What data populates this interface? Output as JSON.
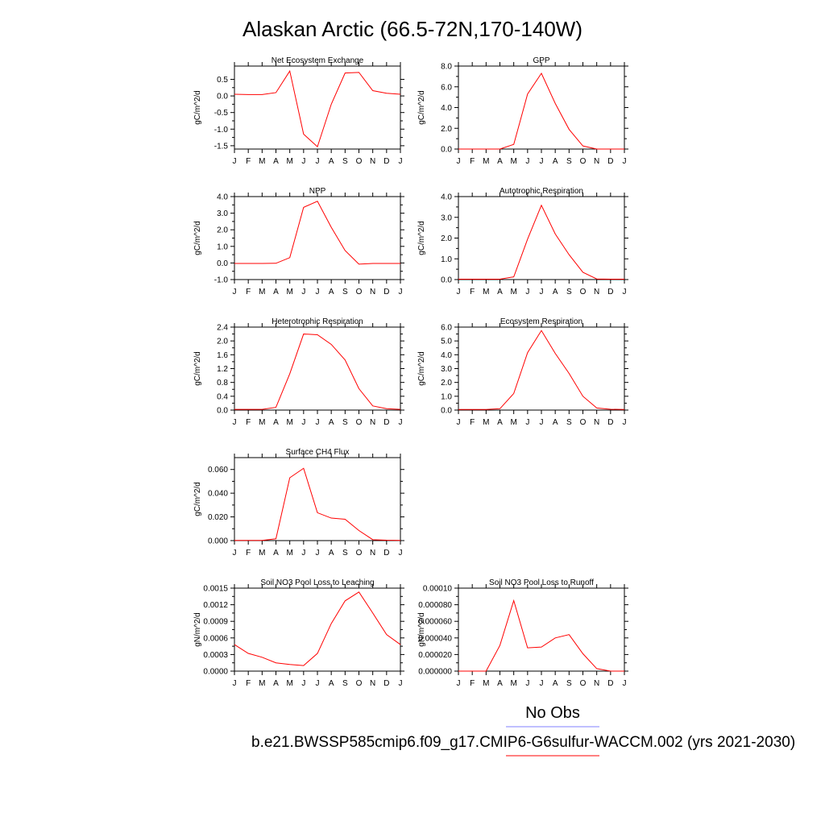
{
  "figure": {
    "title": "Alaskan Arctic (66.5-72N,170-140W)",
    "legend": {
      "obs_label": "No Obs",
      "obs_color": "#8080ff",
      "model_label": "b.e21.BWSSP585cmip6.f09_g17.CMIP6-G6sulfur-WACCM.002 (yrs 2021-2030)",
      "model_color": "#ff0000"
    }
  },
  "chart_data": [
    {
      "type": "line",
      "title": "Net Ecosystem Exchange",
      "ylabel": "gC/m^2/d",
      "x": [
        "J",
        "F",
        "M",
        "A",
        "M",
        "J",
        "J",
        "A",
        "S",
        "O",
        "N",
        "D",
        "J"
      ],
      "ylim": [
        -1.6,
        0.9
      ],
      "yticks": [
        -1.5,
        -1.0,
        -0.5,
        0.0,
        0.5
      ],
      "ytick_labels": [
        "-1.5",
        "-1.0",
        "-0.5",
        "0.0",
        "0.5"
      ],
      "series": [
        {
          "color": "#ff0000",
          "values": [
            0.05,
            0.04,
            0.04,
            0.1,
            0.75,
            -1.15,
            -1.53,
            -0.25,
            0.69,
            0.71,
            0.16,
            0.08,
            0.05
          ]
        }
      ]
    },
    {
      "type": "line",
      "title": "GPP",
      "ylabel": "gC/m^2/d",
      "x": [
        "J",
        "F",
        "M",
        "A",
        "M",
        "J",
        "J",
        "A",
        "S",
        "O",
        "N",
        "D",
        "J"
      ],
      "ylim": [
        0,
        8
      ],
      "yticks": [
        0,
        2,
        4,
        6,
        8
      ],
      "ytick_labels": [
        "0.0",
        "2.0",
        "4.0",
        "6.0",
        "8.0"
      ],
      "series": [
        {
          "color": "#ff0000",
          "values": [
            0,
            0,
            0,
            0,
            0.45,
            5.3,
            7.3,
            4.4,
            1.9,
            0.3,
            0,
            0,
            0
          ]
        }
      ]
    },
    {
      "type": "line",
      "title": "NPP",
      "ylabel": "gC/m^2/d",
      "x": [
        "J",
        "F",
        "M",
        "A",
        "M",
        "J",
        "J",
        "A",
        "S",
        "O",
        "N",
        "D",
        "J"
      ],
      "ylim": [
        -1,
        4
      ],
      "yticks": [
        -1,
        0,
        1,
        2,
        3,
        4
      ],
      "ytick_labels": [
        "-1.0",
        "0.0",
        "1.0",
        "2.0",
        "3.0",
        "4.0"
      ],
      "series": [
        {
          "color": "#ff0000",
          "values": [
            -0.03,
            -0.03,
            -0.03,
            -0.02,
            0.32,
            3.35,
            3.72,
            2.15,
            0.75,
            -0.07,
            -0.03,
            -0.03,
            -0.03
          ]
        }
      ]
    },
    {
      "type": "line",
      "title": "Autotrophic Respiration",
      "ylabel": "gC/m^2/d",
      "x": [
        "J",
        "F",
        "M",
        "A",
        "M",
        "J",
        "J",
        "A",
        "S",
        "O",
        "N",
        "D",
        "J"
      ],
      "ylim": [
        0,
        4
      ],
      "yticks": [
        0,
        1,
        2,
        3,
        4
      ],
      "ytick_labels": [
        "0.0",
        "1.0",
        "2.0",
        "3.0",
        "4.0"
      ],
      "series": [
        {
          "color": "#ff0000",
          "values": [
            0.02,
            0.02,
            0.02,
            0.02,
            0.13,
            1.95,
            3.58,
            2.2,
            1.2,
            0.35,
            0.03,
            0.02,
            0.02
          ]
        }
      ]
    },
    {
      "type": "line",
      "title": "Heterotrophic Respiration",
      "ylabel": "gC/m^2/d",
      "x": [
        "J",
        "F",
        "M",
        "A",
        "M",
        "J",
        "J",
        "A",
        "S",
        "O",
        "N",
        "D",
        "J"
      ],
      "ylim": [
        0,
        2.4
      ],
      "yticks": [
        0,
        0.4,
        0.8,
        1.2,
        1.6,
        2.0,
        2.4
      ],
      "ytick_labels": [
        "0.0",
        "0.4",
        "0.8",
        "1.2",
        "1.6",
        "2.0",
        "2.4"
      ],
      "series": [
        {
          "color": "#ff0000",
          "values": [
            0.02,
            0.02,
            0.02,
            0.08,
            1.05,
            2.2,
            2.18,
            1.9,
            1.45,
            0.62,
            0.12,
            0.04,
            0.02
          ]
        }
      ]
    },
    {
      "type": "line",
      "title": "Ecosystem Respiration",
      "ylabel": "gC/m^2/d",
      "x": [
        "J",
        "F",
        "M",
        "A",
        "M",
        "J",
        "J",
        "A",
        "S",
        "O",
        "N",
        "D",
        "J"
      ],
      "ylim": [
        0,
        6
      ],
      "yticks": [
        0,
        1,
        2,
        3,
        4,
        5,
        6
      ],
      "ytick_labels": [
        "0.0",
        "1.0",
        "2.0",
        "3.0",
        "4.0",
        "5.0",
        "6.0"
      ],
      "series": [
        {
          "color": "#ff0000",
          "values": [
            0.04,
            0.04,
            0.04,
            0.1,
            1.2,
            4.15,
            5.75,
            4.1,
            2.65,
            1.0,
            0.15,
            0.06,
            0.04
          ]
        }
      ]
    },
    {
      "type": "line",
      "title": "Surface CH4 Flux",
      "ylabel": "gC/m^2/d",
      "x": [
        "J",
        "F",
        "M",
        "A",
        "M",
        "J",
        "J",
        "A",
        "S",
        "O",
        "N",
        "D",
        "J"
      ],
      "ylim": [
        0,
        0.07
      ],
      "yticks": [
        0,
        0.02,
        0.04,
        0.06
      ],
      "ytick_labels": [
        "0.000",
        "0.020",
        "0.040",
        "0.060"
      ],
      "series": [
        {
          "color": "#ff0000",
          "values": [
            0.0002,
            0.0002,
            0.0002,
            0.0015,
            0.053,
            0.061,
            0.0235,
            0.019,
            0.018,
            0.0085,
            0.0008,
            0.0003,
            0.0002
          ]
        }
      ]
    },
    {
      "type": "line",
      "title": "Soil NO3 Pool Loss to Leaching",
      "ylabel": "gN/m^2/d",
      "x": [
        "J",
        "F",
        "M",
        "A",
        "M",
        "J",
        "J",
        "A",
        "S",
        "O",
        "N",
        "D",
        "J"
      ],
      "ylim": [
        0,
        0.0015
      ],
      "yticks": [
        0,
        0.0003,
        0.0006,
        0.0009,
        0.0012,
        0.0015
      ],
      "ytick_labels": [
        "0.0000",
        "0.0003",
        "0.0006",
        "0.0009",
        "0.0012",
        "0.0015"
      ],
      "series": [
        {
          "color": "#ff0000",
          "values": [
            0.00048,
            0.00032,
            0.00025,
            0.00015,
            0.00012,
            0.0001,
            0.00032,
            0.00086,
            0.00127,
            0.00143,
            0.00105,
            0.00066,
            0.00048
          ]
        }
      ]
    },
    {
      "type": "line",
      "title": "Soil NO3 Pool Loss to Runoff",
      "ylabel": "gN/m^2/d",
      "x": [
        "J",
        "F",
        "M",
        "A",
        "M",
        "J",
        "J",
        "A",
        "S",
        "O",
        "N",
        "D",
        "J"
      ],
      "ylim": [
        0,
        0.0001
      ],
      "yticks": [
        0,
        2e-05,
        4e-05,
        6e-05,
        8e-05,
        0.0001
      ],
      "ytick_labels": [
        "0.000000",
        "0.000020",
        "0.000040",
        "0.000060",
        "0.000080",
        "0.00010"
      ],
      "series": [
        {
          "color": "#ff0000",
          "values": [
            0,
            0,
            0,
            3.1e-05,
            8.5e-05,
            2.8e-05,
            2.9e-05,
            4e-05,
            4.4e-05,
            2.1e-05,
            3e-06,
            0,
            0
          ]
        }
      ]
    }
  ]
}
